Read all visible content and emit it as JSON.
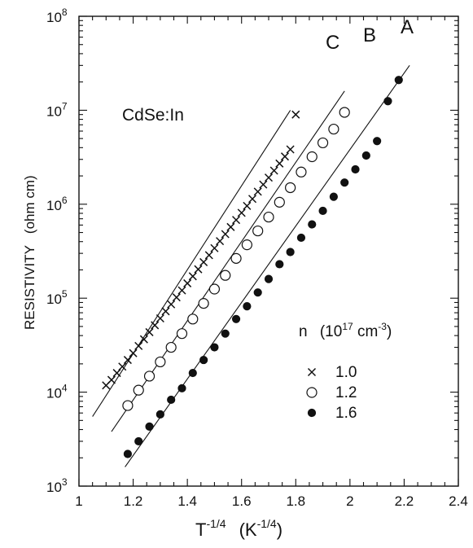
{
  "chart_data": {
    "type": "scatter",
    "title": "CdSe:In",
    "xlabel": {
      "base": "T",
      "exp": "-1/4",
      "unit_base": "K",
      "unit_exp": "-1/4"
    },
    "ylabel": {
      "main": "RESISTIVITY",
      "unit": "(ohm cm)"
    },
    "xlim": [
      1,
      2.4
    ],
    "ylim": [
      1000,
      100000000
    ],
    "yscale": "log",
    "x_ticks": [
      "1",
      "1.2",
      "1.4",
      "1.6",
      "1.8",
      "2",
      "2.2",
      "2.4"
    ],
    "y_ticks": [
      {
        "base": "10",
        "exp": "3"
      },
      {
        "base": "10",
        "exp": "4"
      },
      {
        "base": "10",
        "exp": "5"
      },
      {
        "base": "10",
        "exp": "6"
      },
      {
        "base": "10",
        "exp": "7"
      },
      {
        "base": "10",
        "exp": "8"
      }
    ],
    "legend": {
      "title": {
        "n": "n",
        "paren_open": "(10",
        "exp1": "17",
        "unit": " cm",
        "exp2": "-3",
        "paren_close": ")"
      },
      "entries": [
        {
          "marker": "cross",
          "label": "1.0"
        },
        {
          "marker": "open-circle",
          "label": "1.2"
        },
        {
          "marker": "filled-circle",
          "label": "1.6"
        }
      ],
      "position": "right-middle"
    },
    "series": [
      {
        "name": "C",
        "marker": "cross",
        "n": "1.0",
        "fit": {
          "x": [
            1.05,
            1.78
          ],
          "y": [
            5500,
            10000000
          ]
        },
        "x": [
          1.1,
          1.12,
          1.14,
          1.16,
          1.18,
          1.2,
          1.22,
          1.24,
          1.26,
          1.28,
          1.3,
          1.32,
          1.34,
          1.36,
          1.38,
          1.4,
          1.42,
          1.44,
          1.46,
          1.48,
          1.5,
          1.52,
          1.54,
          1.56,
          1.58,
          1.6,
          1.62,
          1.64,
          1.66,
          1.68,
          1.7,
          1.72,
          1.74,
          1.76,
          1.78,
          1.8
        ],
        "y": [
          11800,
          13500,
          16000,
          18700,
          22000,
          26000,
          31000,
          36500,
          43500,
          51500,
          61000,
          72500,
          86000,
          102000,
          121000,
          144000,
          171000,
          203000,
          242000,
          287000,
          341000,
          405000,
          481000,
          572000,
          680000,
          810000,
          960000,
          1140000,
          1360000,
          1620000,
          1920000,
          2280000,
          2710000,
          3220000,
          3830000,
          9000000
        ]
      },
      {
        "name": "B",
        "marker": "open-circle",
        "n": "1.2",
        "fit": {
          "x": [
            1.12,
            1.98
          ],
          "y": [
            3800,
            16000000
          ]
        },
        "x": [
          1.18,
          1.22,
          1.26,
          1.3,
          1.34,
          1.38,
          1.42,
          1.46,
          1.5,
          1.54,
          1.58,
          1.62,
          1.66,
          1.7,
          1.74,
          1.78,
          1.82,
          1.86,
          1.9,
          1.94,
          1.98
        ],
        "y": [
          7200,
          10500,
          14800,
          21000,
          30000,
          42000,
          60000,
          88000,
          125000,
          175000,
          265000,
          370000,
          520000,
          730000,
          1050000,
          1500000,
          2200000,
          3200000,
          4500000,
          6300000,
          9500000
        ]
      },
      {
        "name": "A",
        "marker": "filled-circle",
        "n": "1.6",
        "fit": {
          "x": [
            1.17,
            2.22
          ],
          "y": [
            1600,
            30000000
          ]
        },
        "x": [
          1.18,
          1.22,
          1.26,
          1.3,
          1.34,
          1.38,
          1.42,
          1.46,
          1.5,
          1.54,
          1.58,
          1.62,
          1.66,
          1.7,
          1.74,
          1.78,
          1.82,
          1.86,
          1.9,
          1.94,
          1.98,
          2.02,
          2.06,
          2.1,
          2.14,
          2.18
        ],
        "y": [
          2200,
          3000,
          4300,
          5800,
          8300,
          11000,
          16000,
          22000,
          30000,
          42000,
          60000,
          82000,
          115000,
          160000,
          230000,
          310000,
          440000,
          610000,
          850000,
          1200000,
          1700000,
          2350000,
          3300000,
          4700000,
          12500000,
          21000000
        ]
      }
    ],
    "grid": false,
    "minor_ticks": true
  }
}
